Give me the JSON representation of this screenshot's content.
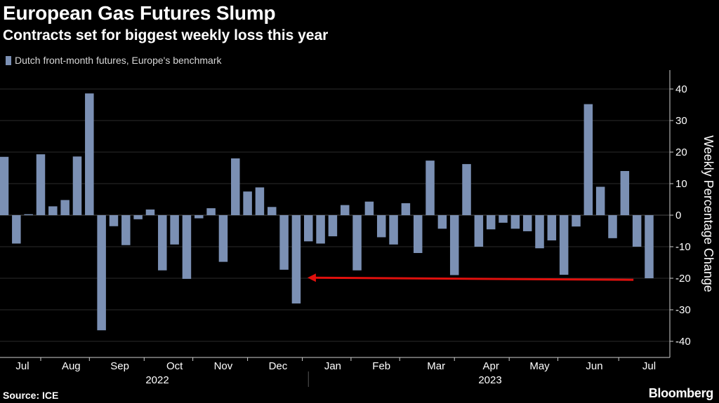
{
  "header": {
    "title": "European Gas Futures Slump",
    "subtitle": "Contracts set for biggest weekly loss this year"
  },
  "footer": {
    "source": "Source: ICE",
    "brand": "Bloomberg"
  },
  "colors": {
    "bar": "#7b90b4",
    "arrow": "#e0100d",
    "background": "#000000",
    "grid": "#2c2c2c"
  },
  "chart_data": {
    "type": "bar",
    "title": "European Gas Futures Slump",
    "subtitle": "Contracts set for biggest weekly loss this year",
    "ylabel": "Weekly Percentage Change",
    "xlabel": "",
    "ylim": [
      -45,
      47
    ],
    "yticks": [
      40,
      30,
      20,
      10,
      0,
      -10,
      -20,
      -30,
      -40
    ],
    "grid": "horizontal",
    "legend_position": "top-left",
    "series": [
      {
        "name": "Dutch front-month futures, Europe's benchmark",
        "values": [
          18.5,
          -9,
          0.3,
          19.3,
          2.8,
          4.8,
          18.6,
          38.6,
          -36.5,
          -3.5,
          -9.5,
          -1.3,
          1.8,
          -17.5,
          -9.3,
          -20.2,
          -1,
          2.2,
          -14.8,
          18,
          7.5,
          8.8,
          2.6,
          -17.3,
          -28,
          -8.3,
          -9,
          -6.7,
          3.2,
          -17.5,
          4.3,
          -7,
          -9.3,
          3.8,
          -12,
          17.3,
          -4.3,
          -19,
          16.2,
          -10,
          -4.5,
          -2.4,
          -4.3,
          -5.1,
          -10.5,
          -8,
          -18.9,
          -3.6,
          35.2,
          9,
          -7.3,
          14,
          -10,
          -20
        ]
      }
    ],
    "x_month_ticks": [
      "Jul",
      "Aug",
      "Sep",
      "Oct",
      "Nov",
      "Dec",
      "Jan",
      "Feb",
      "Mar",
      "Apr",
      "May",
      "Jun",
      "Jul"
    ],
    "x_year_labels": [
      "2022",
      "2023"
    ],
    "annotations": [
      {
        "type": "arrow",
        "from_week": 52,
        "to_week": 24,
        "y": -20.5
      }
    ]
  }
}
